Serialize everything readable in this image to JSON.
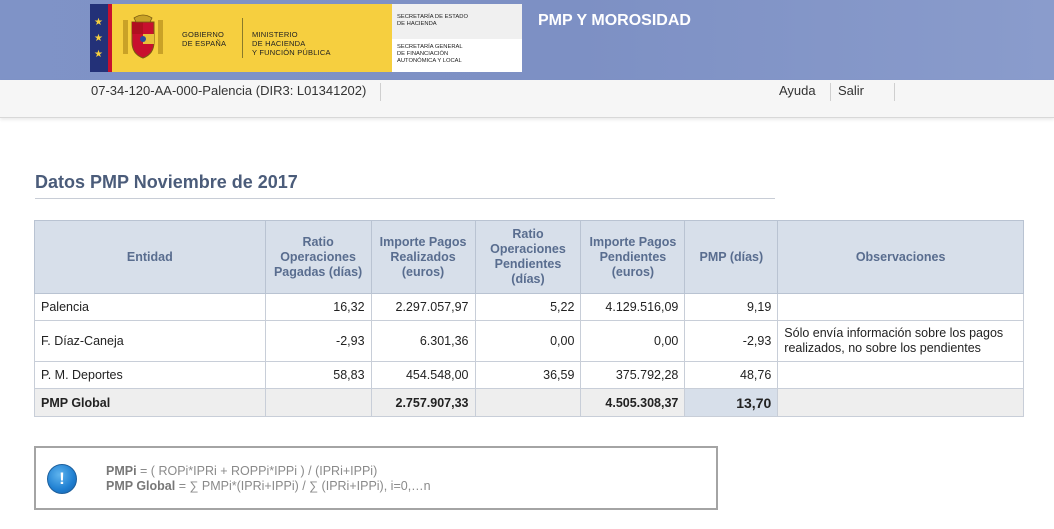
{
  "header": {
    "gov_label": "GOBIERNO\nDE ESPAÑA",
    "ministry_label": "MINISTERIO\nDE HACIENDA\nY FUNCIÓN PÚBLICA",
    "secretary_1": "SECRETARÍA DE ESTADO\nDE HACIENDA",
    "secretary_2": "SECRETARÍA GENERAL\nDE FINANCIACIÓN\nAUTONÓMICA Y LOCAL",
    "app_title": "PMP Y MOROSIDAD",
    "stripe_icon": "star-icon",
    "coat_icon": "coat-of-arms-icon"
  },
  "subbar": {
    "entity_id": "07-34-120-AA-000-Palencia (DIR3: L01341202)",
    "help_label": "Ayuda",
    "logout_label": "Salir"
  },
  "section": {
    "title": "Datos PMP Noviembre de 2017"
  },
  "table": {
    "headers": {
      "entidad": "Entidad",
      "ratio_pagadas": "Ratio Operaciones Pagadas (días)",
      "importe_realizados": "Importe Pagos Realizados (euros)",
      "ratio_pendientes": "Ratio Operaciones Pendientes (días)",
      "importe_pendientes": "Importe Pagos Pendientes (euros)",
      "pmp": "PMP (días)",
      "observaciones": "Observaciones"
    },
    "rows": [
      {
        "entidad": "Palencia",
        "ratio_pagadas": "16,32",
        "importe_realizados": "2.297.057,97",
        "ratio_pendientes": "5,22",
        "importe_pendientes": "4.129.516,09",
        "pmp": "9,19",
        "observaciones": ""
      },
      {
        "entidad": "F. Díaz-Caneja",
        "ratio_pagadas": "-2,93",
        "importe_realizados": "6.301,36",
        "ratio_pendientes": "0,00",
        "importe_pendientes": "0,00",
        "pmp": "-2,93",
        "observaciones": "Sólo envía información sobre los pagos realizados, no sobre los pendientes"
      },
      {
        "entidad": "P. M. Deportes",
        "ratio_pagadas": "58,83",
        "importe_realizados": "454.548,00",
        "ratio_pendientes": "36,59",
        "importe_pendientes": "375.792,28",
        "pmp": "48,76",
        "observaciones": ""
      }
    ],
    "global": {
      "label": "PMP Global",
      "importe_realizados": "2.757.907,33",
      "importe_pendientes": "4.505.308,37",
      "pmp": "13,70"
    }
  },
  "info": {
    "icon": "info-icon",
    "icon_glyph": "!",
    "line1_label": "PMPi",
    "line1_formula": " = ( ROPi*IPRi + ROPPi*IPPi ) / (IPRi+IPPi)",
    "line2_label": "PMP Global",
    "line2_formula": " = ∑ PMPi*(IPRi+IPPi) / ∑ (IPRi+IPPi), i=0,…n"
  }
}
